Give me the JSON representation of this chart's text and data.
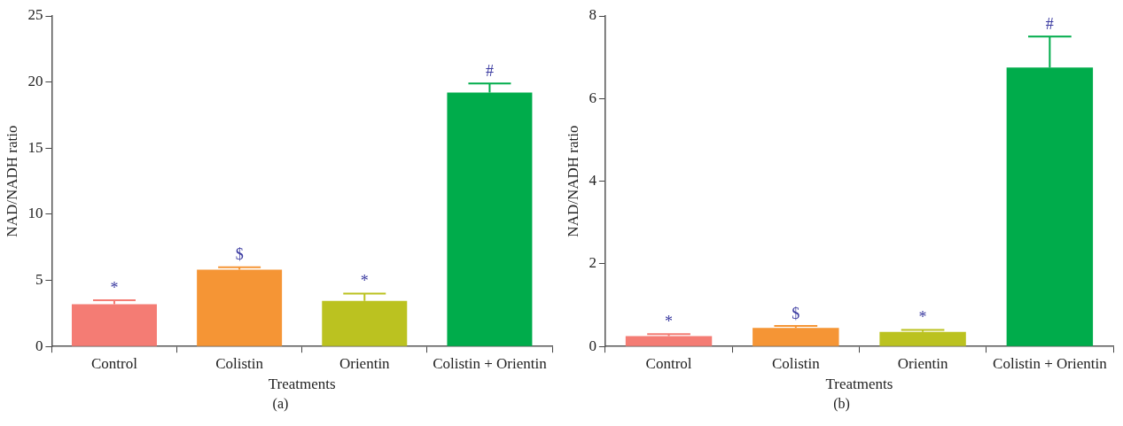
{
  "chart_data": [
    {
      "type": "bar",
      "xlabel": "Treatments",
      "ylabel": "NAD/NADH ratio",
      "categories": [
        "Control",
        "Colistin",
        "Orientin",
        "Colistin + Orientin"
      ],
      "values": [
        3.2,
        5.8,
        3.45,
        19.2
      ],
      "colors": [
        "#f47c74",
        "#f59535",
        "#bbc220",
        "#00ac4b"
      ],
      "errors": [
        [
          3.2,
          3.5
        ],
        [
          5.8,
          6.0
        ],
        [
          3.45,
          4.0
        ],
        [
          19.2,
          19.9
        ]
      ],
      "ylim": [
        0,
        25
      ],
      "yticks": [
        0,
        5,
        10,
        15,
        20,
        25
      ],
      "grid": false,
      "legend": false,
      "annotations": [
        {
          "text": "*",
          "x": "Control",
          "y": 3.5
        },
        {
          "text": "$",
          "x": "Colistin",
          "y": 6.0
        },
        {
          "text": "*",
          "x": "Orientin",
          "y": 4.0
        },
        {
          "text": "#",
          "x": "Colistin + Orientin",
          "y": 19.9
        },
        "(a)"
      ]
    },
    {
      "type": "bar",
      "xlabel": "Treatments",
      "ylabel": "NAD/NADH ratio",
      "categories": [
        "Control",
        "Colistin",
        "Orientin",
        "Colistin + Orientin"
      ],
      "values": [
        0.25,
        0.45,
        0.35,
        6.75
      ],
      "colors": [
        "#f47c74",
        "#f59535",
        "#bbc220",
        "#00ac4b"
      ],
      "errors": [
        [
          0.25,
          0.3
        ],
        [
          0.45,
          0.5
        ],
        [
          0.35,
          0.4
        ],
        [
          6.75,
          7.5
        ]
      ],
      "ylim": [
        0,
        8
      ],
      "yticks": [
        0,
        2,
        4,
        6,
        8
      ],
      "grid": false,
      "legend": false,
      "annotations": [
        {
          "text": "*",
          "x": "Control",
          "y": 0.3
        },
        {
          "text": "$",
          "x": "Colistin",
          "y": 0.5
        },
        {
          "text": "*",
          "x": "Orientin",
          "y": 0.4
        },
        {
          "text": "#",
          "x": "Colistin + Orientin",
          "y": 7.5
        },
        "(b)"
      ]
    }
  ]
}
